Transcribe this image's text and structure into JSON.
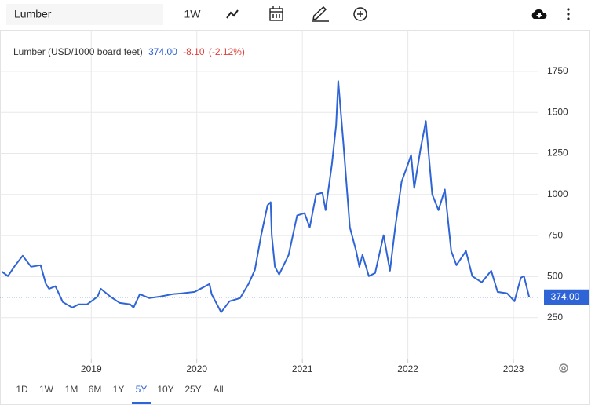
{
  "toolbar": {
    "search": "Lumber",
    "interval": "1W"
  },
  "ranges": [
    "1D",
    "1W",
    "1M",
    "6M",
    "1Y",
    "5Y",
    "10Y",
    "25Y",
    "All"
  ],
  "chart_data": {
    "type": "line",
    "title": "Lumber (USD/1000 board feet)",
    "last_price": {
      "value": 374,
      "label": "374.00"
    },
    "change": "-8.10",
    "change_pct": "(-2.12%)",
    "x": [
      2018.15,
      2018.21,
      2018.27,
      2018.35,
      2018.43,
      2018.52,
      2018.57,
      2018.6,
      2018.66,
      2018.73,
      2018.82,
      2018.88,
      2018.96,
      2019.06,
      2019.09,
      2019.18,
      2019.27,
      2019.37,
      2019.4,
      2019.46,
      2019.55,
      2019.65,
      2019.77,
      2019.86,
      2019.98,
      2020.12,
      2020.14,
      2020.23,
      2020.31,
      2020.41,
      2020.49,
      2020.55,
      2020.61,
      2020.67,
      2020.7,
      2020.71,
      2020.74,
      2020.78,
      2020.87,
      2020.95,
      2021.02,
      2021.07,
      2021.13,
      2021.19,
      2021.22,
      2021.28,
      2021.32,
      2021.34,
      2021.39,
      2021.45,
      2021.51,
      2021.54,
      2021.57,
      2021.63,
      2021.69,
      2021.77,
      2021.83,
      2021.88,
      2021.94,
      2022.0,
      2022.03,
      2022.06,
      2022.12,
      2022.17,
      2022.23,
      2022.29,
      2022.35,
      2022.41,
      2022.46,
      2022.55,
      2022.61,
      2022.7,
      2022.79,
      2022.85,
      2022.94,
      2023.01,
      2023.07,
      2023.1,
      2023.15
    ],
    "series": [
      {
        "name": "Lumber",
        "color": "#2f64d6",
        "values": [
          532,
          503,
          560,
          627,
          560,
          570,
          455,
          426,
          441,
          345,
          311,
          331,
          331,
          378,
          426,
          378,
          340,
          331,
          311,
          393,
          369,
          378,
          393,
          398,
          407,
          455,
          393,
          283,
          350,
          369,
          455,
          541,
          752,
          934,
          953,
          752,
          560,
          513,
          632,
          872,
          886,
          800,
          1001,
          1011,
          905,
          1183,
          1423,
          1691,
          1303,
          800,
          656,
          560,
          632,
          503,
          522,
          752,
          536,
          800,
          1078,
          1183,
          1241,
          1039,
          1279,
          1447,
          1001,
          905,
          1030,
          656,
          570,
          656,
          503,
          465,
          536,
          407,
          398,
          350,
          493,
          503,
          374
        ]
      }
    ],
    "xlim": [
      2018.15,
      2023.23
    ],
    "ylim": [
      0,
      2000
    ],
    "xticks": [
      2019,
      2020,
      2021,
      2022,
      2023
    ],
    "yticks": [
      250,
      500,
      750,
      1000,
      1250,
      1500,
      1750
    ],
    "grid": true
  }
}
